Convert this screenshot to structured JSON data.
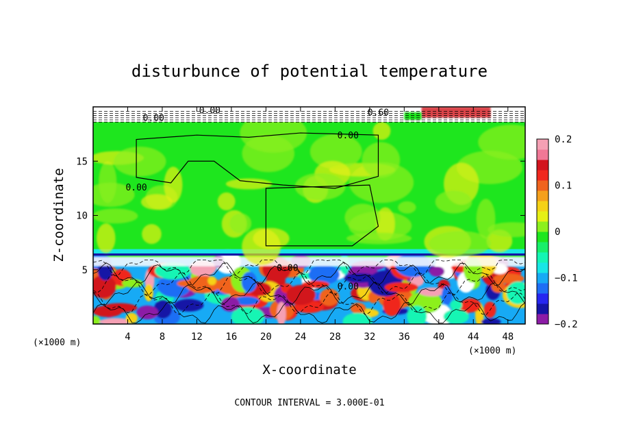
{
  "chart_data": {
    "type": "heatmap",
    "title": "disturbunce of potential temperature",
    "xlabel": "X-coordinate",
    "ylabel": "Z-coordinate",
    "x_unit": "(×1000 m)",
    "y_unit": "(×1000 m)",
    "xlim": [
      0,
      50
    ],
    "ylim": [
      0,
      20
    ],
    "x_ticks": [
      4,
      8,
      12,
      16,
      20,
      24,
      28,
      32,
      36,
      40,
      44,
      48
    ],
    "y_ticks": [
      5,
      10,
      15
    ],
    "colorbar": {
      "vmin": -0.2,
      "vmax": 0.2,
      "tick_values": [
        0.2,
        0.1,
        0,
        -0.1,
        -0.2
      ],
      "tick_labels": [
        "0.2",
        "0.1",
        "0",
        "−0.1",
        "−0.2"
      ],
      "colors": [
        "#8c1ca6",
        "#1414a6",
        "#2626f0",
        "#1e6ef5",
        "#17aaf5",
        "#18e6e6",
        "#15f5b4",
        "#18ef6a",
        "#1ee61e",
        "#8cf01e",
        "#e6f014",
        "#f5d216",
        "#f5a01c",
        "#f0641e",
        "#f0281e",
        "#d2141e",
        "#f07896",
        "#f5a0b4"
      ]
    },
    "contour_labels": [
      "0.00",
      "0.00",
      "0.60",
      "0.00",
      "0.00",
      "0.00",
      "0.00"
    ],
    "footer": "CONTOUR INTERVAL = 3.000E-01",
    "regions": [
      {
        "z_range": [
          18.5,
          20
        ],
        "description_value": "mixed, near 0 with strong gradients"
      },
      {
        "z_range": [
          6.5,
          18.5
        ],
        "value": 0.0
      },
      {
        "z_range": [
          6.0,
          6.6
        ],
        "value": -0.08
      },
      {
        "z_range": [
          0,
          6.0
        ],
        "value_range": [
          -0.2,
          0.2
        ]
      }
    ],
    "grid": false
  }
}
